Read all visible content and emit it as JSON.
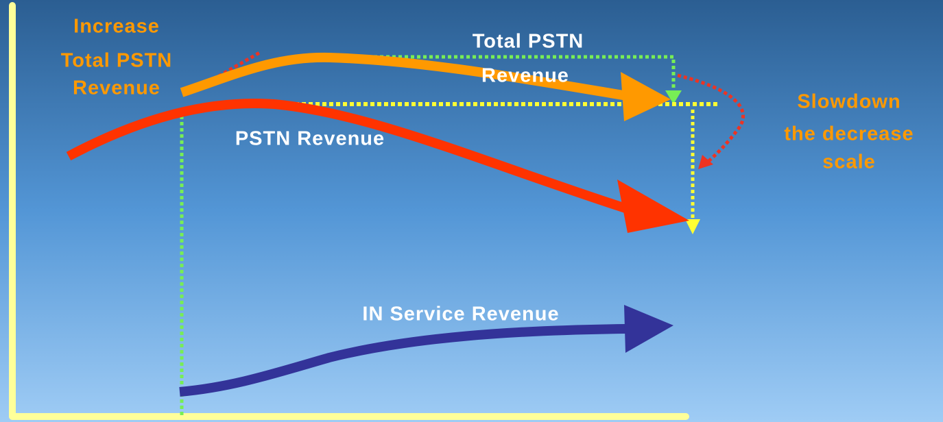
{
  "annotations": {
    "increase_total": [
      "Increase",
      "Total PSTN",
      "Revenue"
    ],
    "total_pstn": [
      "Total PSTN",
      "Revenue"
    ],
    "pstn": "PSTN Revenue",
    "slowdown": [
      "Slowdown",
      "the decrease",
      "scale"
    ],
    "in_service": "IN Service Revenue"
  }
}
